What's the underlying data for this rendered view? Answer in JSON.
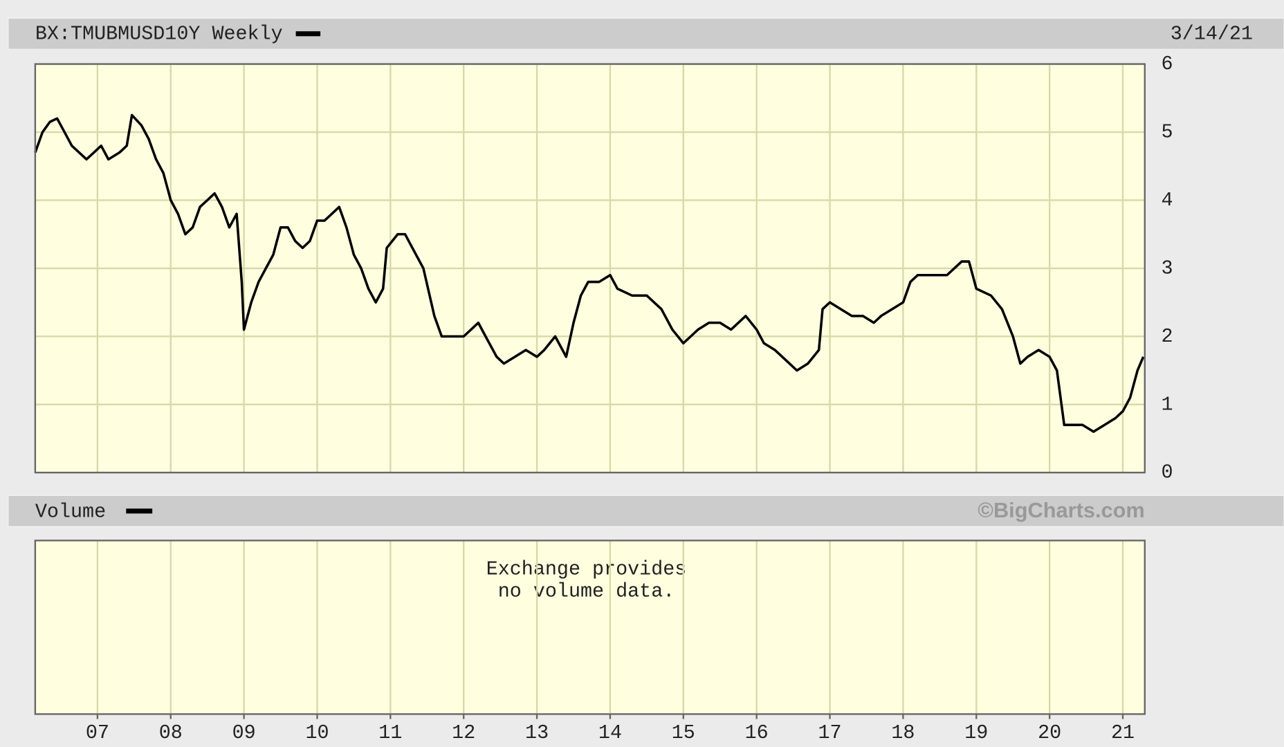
{
  "chart_data": {
    "type": "line",
    "title": "BX:TMUBMUSD10Y Weekly",
    "date": "3/14/21",
    "x": [
      6.15,
      6.25,
      6.35,
      6.45,
      6.55,
      6.65,
      6.75,
      6.85,
      6.95,
      7.05,
      7.15,
      7.3,
      7.4,
      7.47,
      7.6,
      7.7,
      7.8,
      7.9,
      8.0,
      8.1,
      8.2,
      8.3,
      8.4,
      8.5,
      8.6,
      8.7,
      8.8,
      8.9,
      8.97,
      9.0,
      9.1,
      9.2,
      9.3,
      9.4,
      9.5,
      9.6,
      9.7,
      9.8,
      9.9,
      10.0,
      10.1,
      10.2,
      10.3,
      10.4,
      10.5,
      10.6,
      10.7,
      10.8,
      10.9,
      10.95,
      11.1,
      11.2,
      11.3,
      11.45,
      11.6,
      11.7,
      11.8,
      11.9,
      12.0,
      12.1,
      12.2,
      12.3,
      12.45,
      12.55,
      12.7,
      12.85,
      13.0,
      13.1,
      13.25,
      13.4,
      13.5,
      13.6,
      13.7,
      13.85,
      14.0,
      14.1,
      14.3,
      14.5,
      14.7,
      14.85,
      15.0,
      15.1,
      15.2,
      15.35,
      15.5,
      15.65,
      15.85,
      16.0,
      16.1,
      16.25,
      16.45,
      16.55,
      16.7,
      16.85,
      16.9,
      17.0,
      17.15,
      17.3,
      17.45,
      17.6,
      17.7,
      17.85,
      18.0,
      18.1,
      18.2,
      18.4,
      18.6,
      18.8,
      18.9,
      19.0,
      19.2,
      19.35,
      19.5,
      19.6,
      19.7,
      19.85,
      20.0,
      20.1,
      20.2,
      20.3,
      20.45,
      20.6,
      20.75,
      20.9,
      21.0,
      21.1,
      21.2,
      21.28
    ],
    "values": [
      4.7,
      5.0,
      5.15,
      5.2,
      5.0,
      4.8,
      4.7,
      4.6,
      4.7,
      4.8,
      4.6,
      4.7,
      4.8,
      5.25,
      5.1,
      4.9,
      4.6,
      4.4,
      4.0,
      3.8,
      3.5,
      3.6,
      3.9,
      4.0,
      4.1,
      3.9,
      3.6,
      3.8,
      2.8,
      2.1,
      2.5,
      2.8,
      3.0,
      3.2,
      3.6,
      3.6,
      3.4,
      3.3,
      3.4,
      3.7,
      3.7,
      3.8,
      3.9,
      3.6,
      3.2,
      3.0,
      2.7,
      2.5,
      2.7,
      3.3,
      3.5,
      3.5,
      3.3,
      3.0,
      2.3,
      2.0,
      2.0,
      2.0,
      2.0,
      2.1,
      2.2,
      2.0,
      1.7,
      1.6,
      1.7,
      1.8,
      1.7,
      1.8,
      2.0,
      1.7,
      2.2,
      2.6,
      2.8,
      2.8,
      2.9,
      2.7,
      2.6,
      2.6,
      2.4,
      2.1,
      1.9,
      2.0,
      2.1,
      2.2,
      2.2,
      2.1,
      2.3,
      2.1,
      1.9,
      1.8,
      1.6,
      1.5,
      1.6,
      1.8,
      2.4,
      2.5,
      2.4,
      2.3,
      2.3,
      2.2,
      2.3,
      2.4,
      2.5,
      2.8,
      2.9,
      2.9,
      2.9,
      3.1,
      3.1,
      2.7,
      2.6,
      2.4,
      2.0,
      1.6,
      1.7,
      1.8,
      1.7,
      1.5,
      0.7,
      0.7,
      0.7,
      0.6,
      0.7,
      0.8,
      0.9,
      1.1,
      1.5,
      1.7
    ],
    "color": "#000000",
    "xlim": [
      6.15,
      21.3
    ],
    "ylim": [
      0,
      6
    ],
    "yticks": [
      0,
      1,
      2,
      3,
      4,
      5,
      6
    ],
    "xticks": [
      {
        "value": 7,
        "label": "07"
      },
      {
        "value": 8,
        "label": "08"
      },
      {
        "value": 9,
        "label": "09"
      },
      {
        "value": 10,
        "label": "10"
      },
      {
        "value": 11,
        "label": "11"
      },
      {
        "value": 12,
        "label": "12"
      },
      {
        "value": 13,
        "label": "13"
      },
      {
        "value": 14,
        "label": "14"
      },
      {
        "value": 15,
        "label": "15"
      },
      {
        "value": 16,
        "label": "16"
      },
      {
        "value": 17,
        "label": "17"
      },
      {
        "value": 18,
        "label": "18"
      },
      {
        "value": 19,
        "label": "19"
      },
      {
        "value": 20,
        "label": "20"
      },
      {
        "value": 21,
        "label": "21"
      }
    ],
    "grid": true,
    "volume": {
      "title": "Volume",
      "note": [
        "Exchange provides",
        "no volume data."
      ]
    },
    "credit": "©BigCharts.com"
  }
}
